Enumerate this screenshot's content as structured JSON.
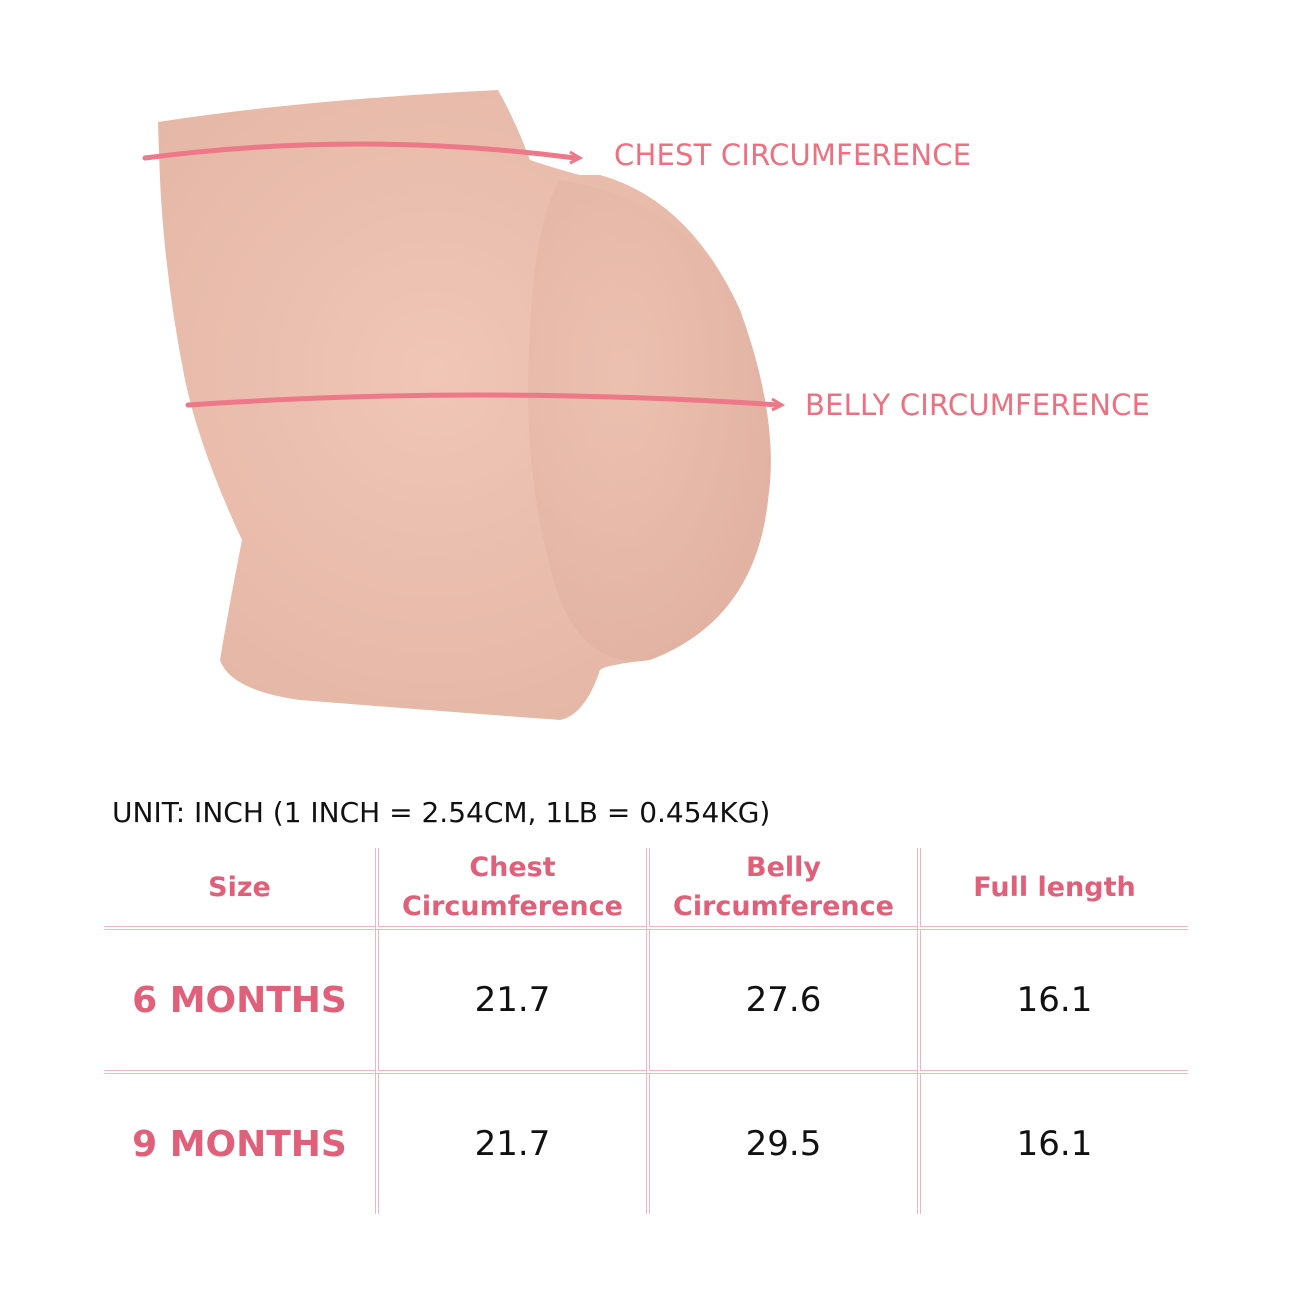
{
  "labels": {
    "chest": "CHEST CIRCUMFERENCE",
    "belly": "BELLY CIRCUMFERENCE"
  },
  "unit_note": "UNIT: INCH (1 INCH = 2.54CM, 1LB = 0.454KG)",
  "table": {
    "headers": [
      "Size",
      "Chest Circumference",
      "Belly Circumference",
      "Full length"
    ],
    "rows": [
      {
        "size": "6 MONTHS",
        "chest": "21.7",
        "belly": "27.6",
        "length": "16.1"
      },
      {
        "size": "9 MONTHS",
        "chest": "21.7",
        "belly": "29.5",
        "length": "16.1"
      }
    ]
  },
  "colors": {
    "accent": "#e0607a",
    "skin": "#eabfae",
    "border": "#f2b5bf"
  }
}
